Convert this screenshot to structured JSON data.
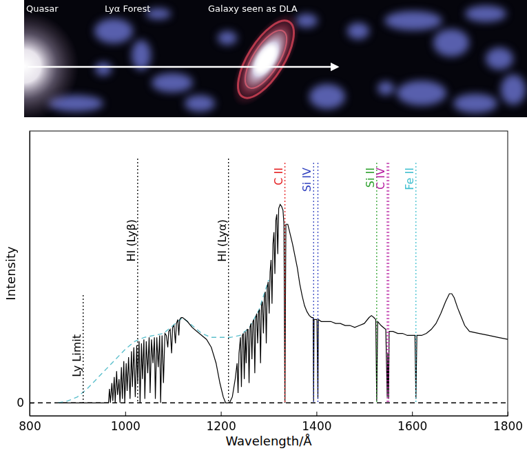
{
  "chart_data": {
    "type": "line",
    "banner_labels": [
      "Quasar",
      "Lyα Forest",
      "Galaxy seen as DLA"
    ],
    "x_label": "Wavelength/Å",
    "y_label": "Intensity",
    "xlim": [
      800,
      1800
    ],
    "xticks": [
      800,
      1000,
      1200,
      1400,
      1600,
      1800
    ],
    "ylim": [
      -0.065,
      1.37
    ],
    "yticks": [
      0
    ],
    "series": [
      {
        "color": "#000000",
        "line_style": "solid",
        "x": [
          860,
          900,
          940,
          965,
          967,
          969,
          972,
          974,
          977,
          979,
          982,
          984,
          987,
          989,
          992,
          994,
          997,
          999,
          1002,
          1004,
          1007,
          1010,
          1013,
          1015,
          1018,
          1021,
          1024,
          1026,
          1029,
          1031,
          1034,
          1036,
          1039,
          1041,
          1044,
          1047,
          1050,
          1052,
          1055,
          1058,
          1061,
          1063,
          1066,
          1069,
          1072,
          1074,
          1077,
          1080,
          1083,
          1086,
          1089,
          1091,
          1094,
          1097,
          1099,
          1102,
          1105,
          1107,
          1110,
          1112,
          1114,
          1117,
          1120,
          1130,
          1140,
          1150,
          1160,
          1170,
          1180,
          1190,
          1198,
          1205,
          1210,
          1218,
          1224,
          1230,
          1234,
          1236,
          1238,
          1241,
          1243,
          1245,
          1247,
          1249,
          1251,
          1253,
          1255,
          1257,
          1259,
          1261,
          1263,
          1265,
          1267,
          1269,
          1271,
          1273,
          1275,
          1277,
          1279,
          1281,
          1283,
          1285,
          1287,
          1289,
          1291,
          1293,
          1295,
          1297,
          1299,
          1301,
          1303,
          1305,
          1307,
          1309,
          1311,
          1313,
          1315,
          1317,
          1319,
          1321,
          1324,
          1327,
          1330,
          1332,
          1334,
          1336,
          1340,
          1345,
          1350,
          1355,
          1360,
          1365,
          1370,
          1375,
          1380,
          1385,
          1390,
          1393,
          1394,
          1395,
          1401,
          1403,
          1404,
          1410,
          1420,
          1430,
          1440,
          1450,
          1460,
          1470,
          1480,
          1490,
          1500,
          1510,
          1515,
          1520,
          1524,
          1526,
          1528,
          1535,
          1540,
          1545,
          1548,
          1549,
          1551,
          1552,
          1560,
          1570,
          1580,
          1590,
          1600,
          1606,
          1608,
          1610,
          1620,
          1630,
          1640,
          1650,
          1660,
          1670,
          1678,
          1683,
          1688,
          1695,
          1700,
          1710,
          1720,
          1740,
          1760,
          1780,
          1800
        ],
        "values": [
          0,
          0,
          0,
          0,
          0.07,
          0,
          0.1,
          0.01,
          0.13,
          0,
          0.16,
          0.04,
          0.12,
          0,
          0.18,
          0.02,
          0.21,
          0,
          0.2,
          0.06,
          0.23,
          0.02,
          0.26,
          0.08,
          0.28,
          0.03,
          0.29,
          0.1,
          0.31,
          0,
          0.3,
          0.12,
          0.32,
          0.02,
          0.31,
          0.15,
          0.33,
          0.05,
          0.32,
          0.2,
          0.33,
          0.02,
          0.33,
          0.18,
          0.34,
          0,
          0.34,
          0.1,
          0.35,
          0.34,
          0.28,
          0.36,
          0.37,
          0.25,
          0.38,
          0.39,
          0.3,
          0.4,
          0.42,
          0.34,
          0.42,
          0.43,
          0.43,
          0.41,
          0.38,
          0.36,
          0.34,
          0.32,
          0.28,
          0.2,
          0.1,
          0.03,
          0,
          0,
          0.03,
          0.12,
          0.2,
          0.05,
          0.25,
          0.33,
          0.08,
          0.34,
          0.35,
          0.12,
          0.36,
          0.2,
          0.37,
          0.37,
          0.1,
          0.38,
          0.4,
          0.22,
          0.41,
          0.42,
          0.15,
          0.43,
          0.45,
          0.3,
          0.46,
          0.47,
          0.2,
          0.49,
          0.51,
          0.35,
          0.53,
          0.56,
          0.3,
          0.58,
          0.61,
          0.45,
          0.66,
          0.72,
          0.5,
          0.8,
          0.86,
          0.65,
          0.92,
          0.95,
          0.75,
          0.98,
          1.0,
          0.99,
          0.97,
          0.9,
          0,
          0.9,
          0.9,
          0.85,
          0.8,
          0.74,
          0.68,
          0.6,
          0.54,
          0.49,
          0.46,
          0.44,
          0.43,
          0.43,
          0.01,
          0.42,
          0.42,
          0.02,
          0.42,
          0.41,
          0.41,
          0.41,
          0.4,
          0.4,
          0.39,
          0.39,
          0.38,
          0.39,
          0.4,
          0.43,
          0.44,
          0.43,
          0.42,
          0.01,
          0.41,
          0.39,
          0.38,
          0.37,
          0.03,
          0.25,
          0.02,
          0.36,
          0.36,
          0.35,
          0.35,
          0.34,
          0.34,
          0.34,
          0.02,
          0.34,
          0.34,
          0.35,
          0.37,
          0.4,
          0.45,
          0.51,
          0.55,
          0.55,
          0.53,
          0.48,
          0.45,
          0.39,
          0.36,
          0.35,
          0.34,
          0.33,
          0.32
        ]
      },
      {
        "color": "#5bbfcc",
        "line_style": "dashed",
        "x": [
          860,
          880,
          900,
          920,
          940,
          960,
          980,
          1000,
          1020,
          1040,
          1060,
          1080,
          1100,
          1120,
          1140,
          1160,
          1180,
          1200,
          1220,
          1240,
          1260,
          1280,
          1300
        ],
        "values": [
          0,
          0.01,
          0.03,
          0.07,
          0.12,
          0.17,
          0.22,
          0.27,
          0.31,
          0.33,
          0.34,
          0.35,
          0.39,
          0.43,
          0.39,
          0.35,
          0.33,
          0.33,
          0.33,
          0.34,
          0.38,
          0.47,
          0.62
        ]
      },
      {
        "color": "#000000",
        "line_style": "dashed",
        "x": [
          800,
          1800
        ],
        "values": [
          0,
          0
        ]
      }
    ],
    "reference_lines": [
      {
        "label": "Ly Limit",
        "x": [
          912
        ],
        "color": "#000000",
        "line_style": "dotted"
      },
      {
        "label": "HI (Lyβ)",
        "x": [
          1026
        ],
        "color": "#000000",
        "line_style": "dotted"
      },
      {
        "label": "HI (Lyα)",
        "x": [
          1216
        ],
        "color": "#000000",
        "line_style": "dotted"
      },
      {
        "label": "C II",
        "x": [
          1334
        ],
        "color": "#e41a1c",
        "line_style": "dotted"
      },
      {
        "label": "Si IV",
        "x": [
          1394,
          1403
        ],
        "color": "#2f3fbf",
        "line_style": "dotted"
      },
      {
        "label": "Si II",
        "x": [
          1526
        ],
        "color": "#2ca02c",
        "line_style": "dotted"
      },
      {
        "label": "C IV",
        "x": [
          1548,
          1551
        ],
        "color": "#b5179e",
        "line_style": "dotted"
      },
      {
        "label": "Fe II",
        "x": [
          1608
        ],
        "color": "#3fbfcf",
        "line_style": "dotted"
      }
    ]
  }
}
